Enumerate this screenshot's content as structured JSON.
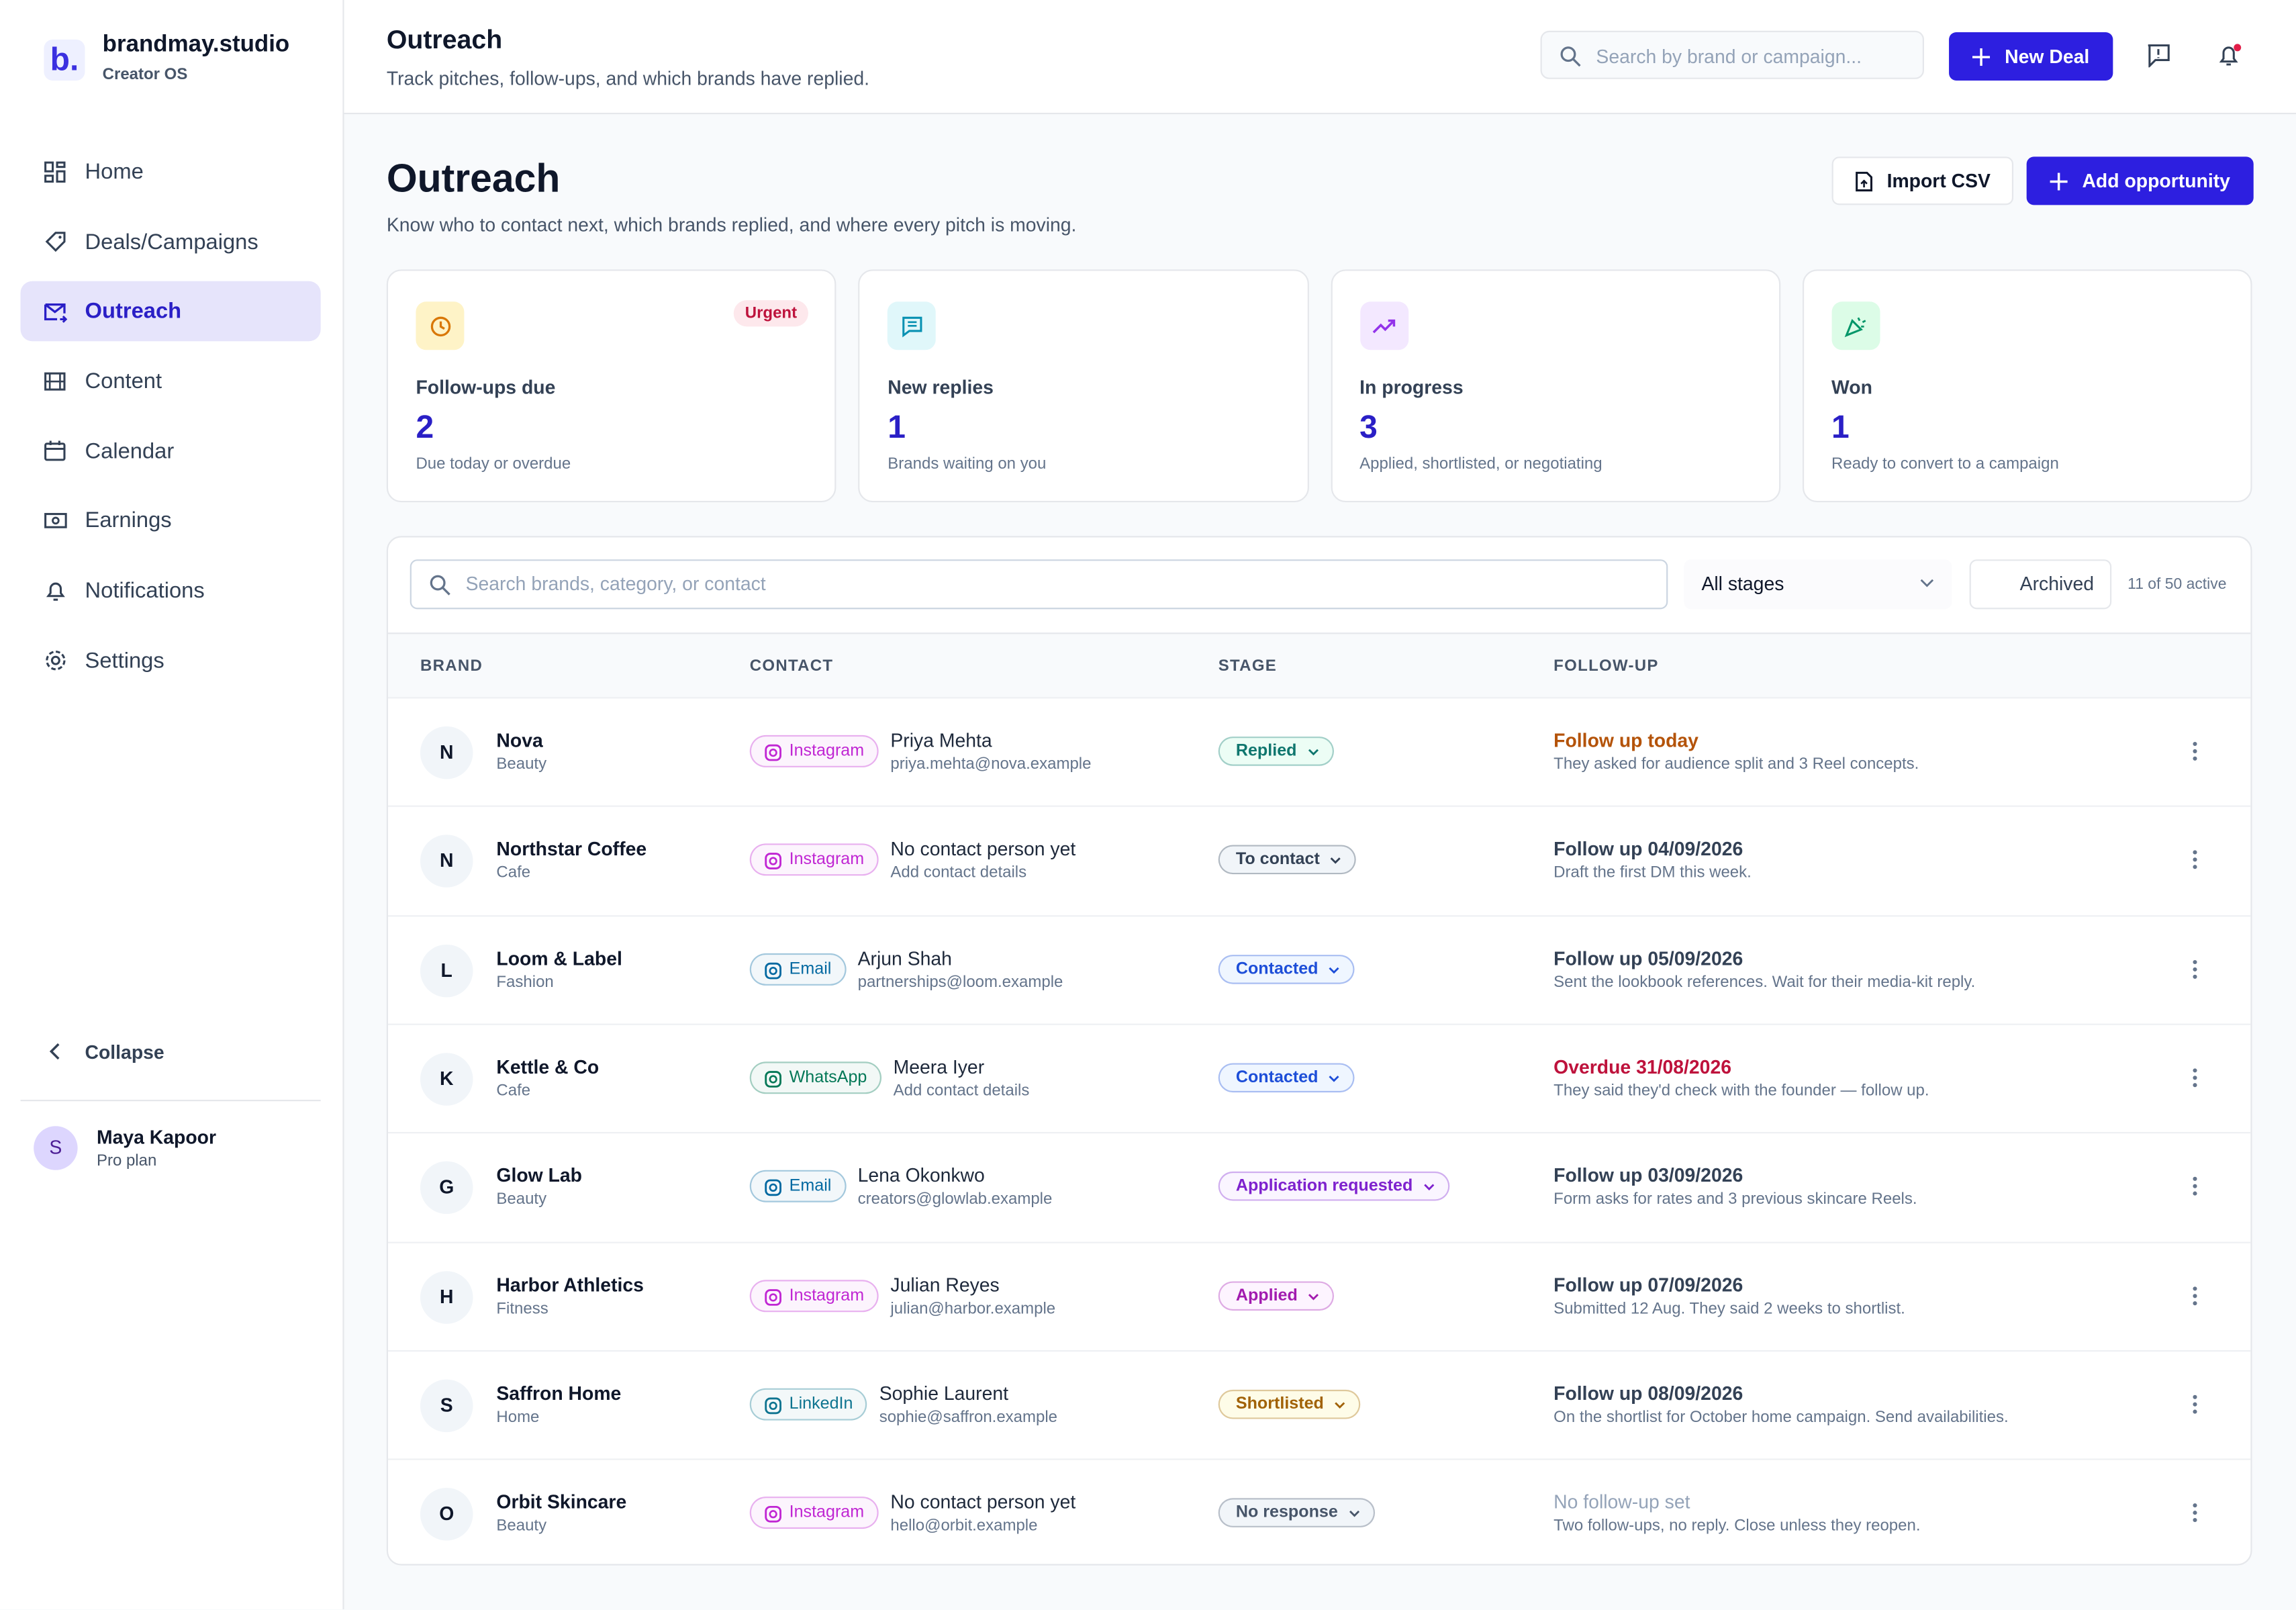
{
  "sidebar": {
    "logo": "b.",
    "brand": "brandmay.studio",
    "tagline": "Creator OS",
    "nav": [
      {
        "label": "Home",
        "active": false
      },
      {
        "label": "Deals/Campaigns",
        "active": false
      },
      {
        "label": "Outreach",
        "active": true
      },
      {
        "label": "Content",
        "active": false
      },
      {
        "label": "Calendar",
        "active": false
      },
      {
        "label": "Earnings",
        "active": false
      },
      {
        "label": "Notifications",
        "active": false
      },
      {
        "label": "Settings",
        "active": false
      }
    ],
    "collapse": "Collapse",
    "user": {
      "initial": "S",
      "name": "Maya Kapoor",
      "plan": "Pro plan"
    }
  },
  "topbar": {
    "title": "Outreach",
    "subtitle": "Track pitches, follow-ups, and which brands have replied.",
    "search_placeholder": "Search by brand or campaign...",
    "new_deal": "New Deal"
  },
  "page": {
    "title": "Outreach",
    "subtitle": "Know who to contact next, which brands replied, and where every pitch is moving.",
    "import": "Import CSV",
    "add": "Add opportunity"
  },
  "stats": [
    {
      "label": "Follow-ups due",
      "value": 2,
      "note": "Due today or overdue",
      "badge": "Urgent",
      "color": "#d97706",
      "bg": "#fef3c7"
    },
    {
      "label": "New replies",
      "value": 1,
      "note": "Brands waiting on you",
      "color": "#0891b2",
      "bg": "#e0f7fa"
    },
    {
      "label": "In progress",
      "value": 3,
      "note": "Applied, shortlisted, or negotiating",
      "color": "#9333ea",
      "bg": "#f3e8ff"
    },
    {
      "label": "Won",
      "value": 1,
      "note": "Ready to convert to a campaign",
      "color": "#059669",
      "bg": "#dcfce7"
    }
  ],
  "filters": {
    "search_placeholder": "Search brands, category, or contact",
    "stage": "All stages",
    "archived": "Archived",
    "count": "11 of 50 active"
  },
  "table": {
    "columns": [
      "BRAND",
      "CONTACT",
      "STAGE",
      "FOLLOW-UP"
    ],
    "rows": [
      {
        "initial": "N",
        "brand": "Nova",
        "category": "Beauty",
        "channel": "Instagram",
        "channel_color": "#c026d3",
        "contact": "Priya Mehta",
        "contact_detail": "priya.mehta@nova.example",
        "stage": "Replied",
        "stage_color": "#0f766e",
        "stage_bg": "#ecfdf5",
        "followup": "Follow up today",
        "followup_color": "#b45309",
        "note": "They asked for audience split and 3 Reel concepts."
      },
      {
        "initial": "N",
        "brand": "Northstar Coffee",
        "category": "Cafe",
        "channel": "Instagram",
        "channel_color": "#c026d3",
        "contact": "No contact person yet",
        "contact_detail": "Add contact details",
        "stage": "To contact",
        "stage_color": "#334155",
        "stage_bg": "#f1f5f9",
        "followup": "Follow up 04/09/2026",
        "followup_color": "#334155",
        "note": "Draft the first DM this week."
      },
      {
        "initial": "L",
        "brand": "Loom & Label",
        "category": "Fashion",
        "channel": "Email",
        "channel_color": "#0369a1",
        "contact": "Arjun Shah",
        "contact_detail": "partnerships@loom.example",
        "stage": "Contacted",
        "stage_color": "#1d4ed8",
        "stage_bg": "#eff6ff",
        "followup": "Follow up 05/09/2026",
        "followup_color": "#334155",
        "note": "Sent the lookbook references. Wait for their media-kit reply."
      },
      {
        "initial": "K",
        "brand": "Kettle & Co",
        "category": "Cafe",
        "channel": "WhatsApp",
        "channel_color": "#047857",
        "contact": "Meera Iyer",
        "contact_detail": "Add contact details",
        "stage": "Contacted",
        "stage_color": "#1d4ed8",
        "stage_bg": "#eff6ff",
        "followup": "Overdue 31/08/2026",
        "followup_color": "#be123c",
        "note": "They said they'd check with the founder — follow up."
      },
      {
        "initial": "G",
        "brand": "Glow Lab",
        "category": "Beauty",
        "channel": "Email",
        "channel_color": "#0369a1",
        "contact": "Lena Okonkwo",
        "contact_detail": "creators@glowlab.example",
        "stage": "Application requested",
        "stage_color": "#7e22ce",
        "stage_bg": "#faf5ff",
        "followup": "Follow up 03/09/2026",
        "followup_color": "#334155",
        "note": "Form asks for rates and 3 previous skincare Reels."
      },
      {
        "initial": "H",
        "brand": "Harbor Athletics",
        "category": "Fitness",
        "channel": "Instagram",
        "channel_color": "#c026d3",
        "contact": "Julian Reyes",
        "contact_detail": "julian@harbor.example",
        "stage": "Applied",
        "stage_color": "#a21caf",
        "stage_bg": "#fdf4ff",
        "followup": "Follow up 07/09/2026",
        "followup_color": "#334155",
        "note": "Submitted 12 Aug. They said 2 weeks to shortlist."
      },
      {
        "initial": "S",
        "brand": "Saffron Home",
        "category": "Home",
        "channel": "LinkedIn",
        "channel_color": "#0e7490",
        "contact": "Sophie Laurent",
        "contact_detail": "sophie@saffron.example",
        "stage": "Shortlisted",
        "stage_color": "#a16207",
        "stage_bg": "#fefce8",
        "followup": "Follow up 08/09/2026",
        "followup_color": "#334155",
        "note": "On the shortlist for October home campaign. Send availabilities."
      },
      {
        "initial": "O",
        "brand": "Orbit Skincare",
        "category": "Beauty",
        "channel": "Instagram",
        "channel_color": "#c026d3",
        "contact": "No contact person yet",
        "contact_detail": "hello@orbit.example",
        "stage": "No response",
        "stage_color": "#475569",
        "stage_bg": "#f1f5f9",
        "followup": "No follow-up set",
        "followup_color": "#94a3b8",
        "note": "Two follow-ups, no reply. Close unless they reopen."
      }
    ]
  }
}
